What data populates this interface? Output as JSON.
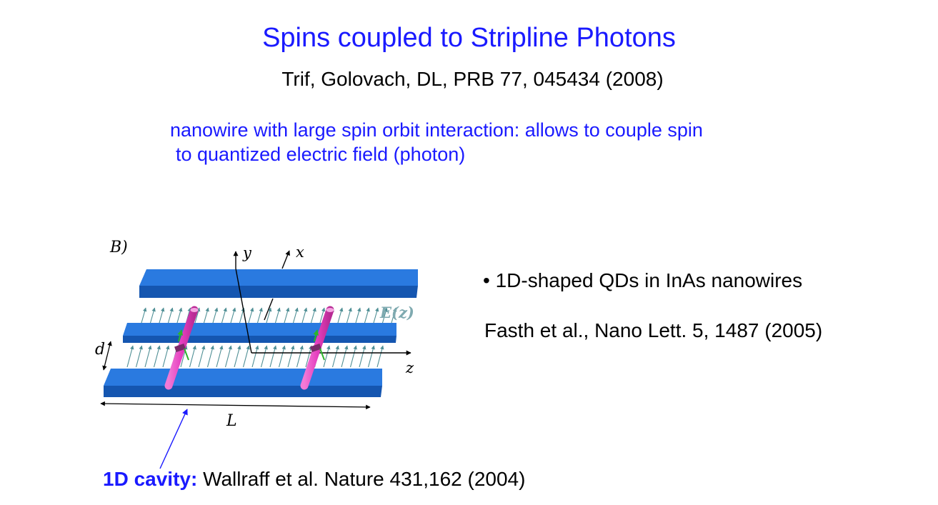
{
  "slide": {
    "title": "Spins coupled to Stripline Photons",
    "citation": "Trif, Golovach, DL, PRB 77, 045434 (2008)",
    "intro_line1": "nanowire with large spin orbit interaction: allows to couple spin",
    "intro_line2": "to quantized electric field (photon)",
    "bullet": "• 1D-shaped QDs in InAs nanowires",
    "reference": "Fasth et al., Nano Lett. 5, 1487 (2005)",
    "cavity_label": "1D cavity:",
    "cavity_ref": " Wallraff et al. Nature 431,162 (2004)"
  },
  "diagram": {
    "panel_label": "B)",
    "axis_y": "y",
    "axis_x": "x",
    "axis_z": "z",
    "field_label": "E(z)",
    "gap_label": "d",
    "length_label": "L",
    "colors": {
      "strip_top": "#1f6fd6",
      "strip_side": "#1556b0",
      "nanowire": "#e63fbf",
      "field_arrow": "#4f8f95",
      "spin_arrow": "#2bb52b",
      "pointer": "#1a1aff"
    }
  }
}
